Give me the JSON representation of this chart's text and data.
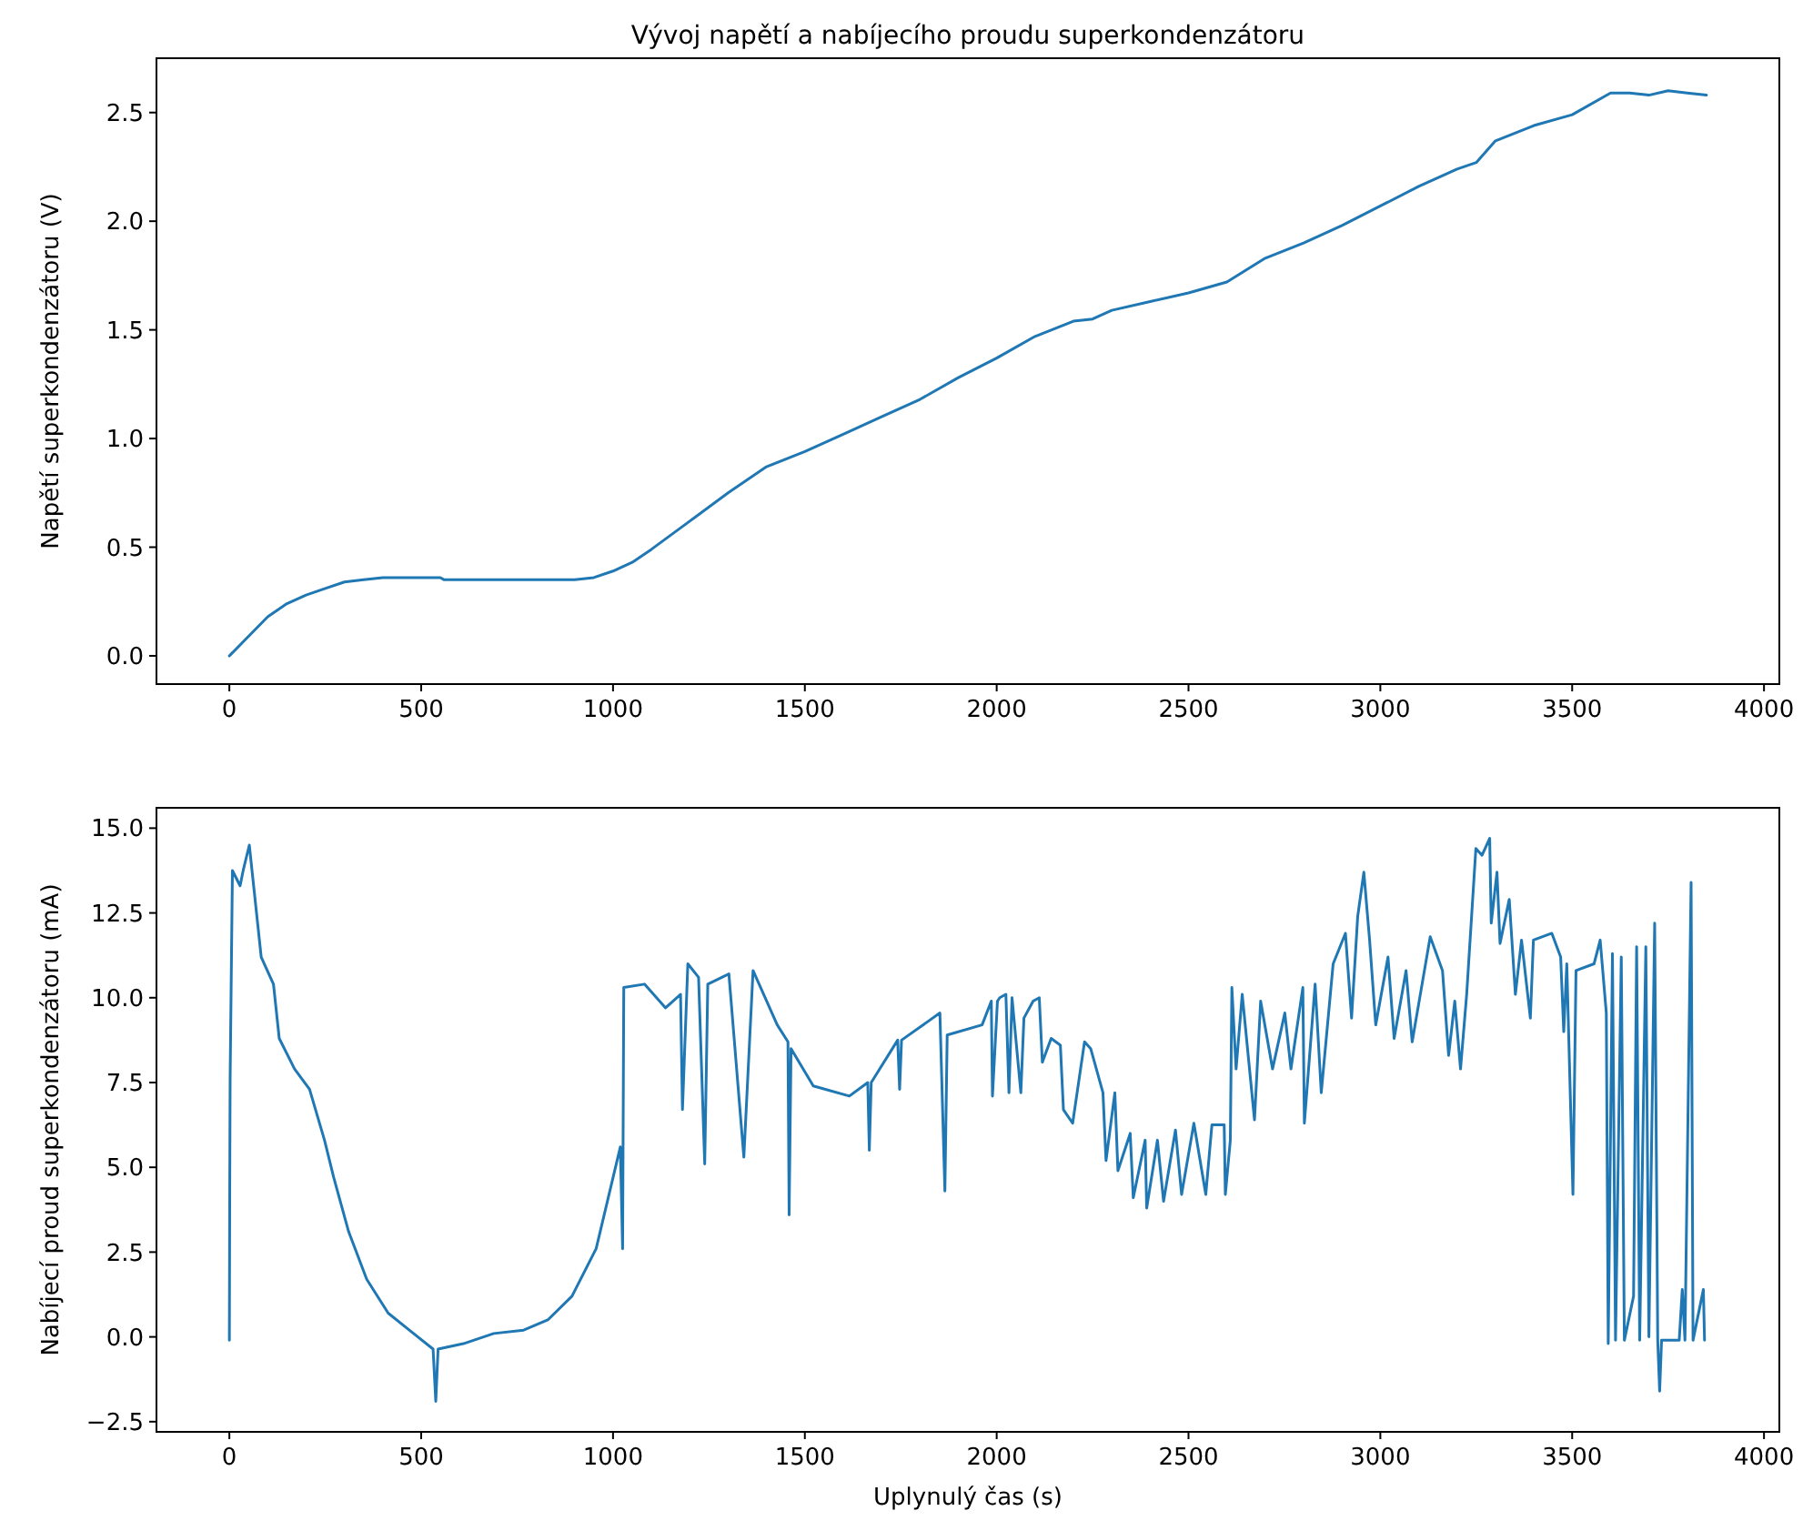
{
  "chart_data": [
    {
      "type": "line",
      "title": "Vývoj napětí a nabíjecího proudu superkondenzátoru",
      "ylabel": "Napětí superkondenzátoru (V)",
      "xlim": [
        -190,
        4040
      ],
      "xticks": [
        0,
        500,
        1000,
        1500,
        2000,
        2500,
        3000,
        3500,
        4000
      ],
      "ylim": [
        -0.13,
        2.75
      ],
      "yticks": [
        {
          "value": 0,
          "label": "0.0"
        },
        {
          "value": 0.5,
          "label": "0.5"
        },
        {
          "value": 1,
          "label": "1.0"
        },
        {
          "value": 1.5,
          "label": "1.5"
        },
        {
          "value": 2,
          "label": "2.0"
        },
        {
          "value": 2.5,
          "label": "2.5"
        }
      ],
      "series": [
        {
          "color": "#1f77b4",
          "x": [
            0,
            50,
            100,
            150,
            200,
            250,
            300,
            350,
            400,
            500,
            550,
            560,
            700,
            900,
            950,
            1000,
            1050,
            1100,
            1200,
            1300,
            1400,
            1500,
            1600,
            1700,
            1800,
            1900,
            2000,
            2100,
            2200,
            2250,
            2300,
            2400,
            2500,
            2600,
            2700,
            2800,
            2900,
            3000,
            3100,
            3200,
            3250,
            3300,
            3400,
            3500,
            3600,
            3650,
            3700,
            3750,
            3800,
            3850
          ],
          "values": [
            0,
            0.09,
            0.18,
            0.24,
            0.28,
            0.31,
            0.34,
            0.35,
            0.36,
            0.36,
            0.36,
            0.35,
            0.35,
            0.35,
            0.36,
            0.39,
            0.43,
            0.49,
            0.62,
            0.75,
            0.87,
            0.94,
            1.02,
            1.1,
            1.18,
            1.28,
            1.37,
            1.47,
            1.54,
            1.55,
            1.59,
            1.63,
            1.67,
            1.72,
            1.83,
            1.9,
            1.98,
            2.07,
            2.16,
            2.24,
            2.27,
            2.37,
            2.44,
            2.49,
            2.59,
            2.59,
            2.58,
            2.6,
            2.59,
            2.58
          ]
        }
      ]
    },
    {
      "type": "line",
      "xlabel": "Uplynulý čas (s)",
      "ylabel": "Nabíjecí proud superkondenzátoru (mA)",
      "xlim": [
        -190,
        4040
      ],
      "xticks": [
        0,
        500,
        1000,
        1500,
        2000,
        2500,
        3000,
        3500,
        4000
      ],
      "ylim": [
        -2.8,
        15.6
      ],
      "yticks": [
        {
          "value": -2.5,
          "label": "−2.5"
        },
        {
          "value": 0,
          "label": "0.0"
        },
        {
          "value": 2.5,
          "label": "2.5"
        },
        {
          "value": 5,
          "label": "5.0"
        },
        {
          "value": 7.5,
          "label": "7.5"
        },
        {
          "value": 10,
          "label": "10.0"
        },
        {
          "value": 12.5,
          "label": "12.5"
        },
        {
          "value": 15,
          "label": "15.0"
        }
      ],
      "series": [
        {
          "color": "#1f77b4",
          "x": [
            0,
            1,
            2,
            8,
            28,
            36,
            52,
            83,
            115,
            130,
            170,
            209,
            248,
            272,
            311,
            358,
            414,
            469,
            531,
            538,
            544,
            610,
            689,
            767,
            830,
            893,
            956,
            1019,
            1025,
            1028,
            1082,
            1137,
            1176,
            1181,
            1195,
            1223,
            1239,
            1247,
            1302,
            1341,
            1365,
            1428,
            1456,
            1459,
            1464,
            1522,
            1616,
            1664,
            1668,
            1673,
            1742,
            1747,
            1752,
            1852,
            1865,
            1871,
            1962,
            1986,
            1989,
            2002,
            2008,
            2024,
            2032,
            2040,
            2063,
            2071,
            2095,
            2111,
            2119,
            2142,
            2166,
            2174,
            2198,
            2229,
            2245,
            2277,
            2285,
            2308,
            2316,
            2348,
            2356,
            2387,
            2391,
            2419,
            2435,
            2466,
            2482,
            2514,
            2545,
            2561,
            2593,
            2596,
            2609,
            2613,
            2624,
            2640,
            2672,
            2688,
            2719,
            2751,
            2767,
            2798,
            2802,
            2830,
            2846,
            2877,
            2909,
            2925,
            2941,
            2957,
            2972,
            2988,
            3020,
            3036,
            3067,
            3083,
            3130,
            3162,
            3178,
            3194,
            3209,
            3225,
            3249,
            3265,
            3285,
            3289,
            3304,
            3312,
            3336,
            3352,
            3368,
            3391,
            3399,
            3447,
            3470,
            3478,
            3486,
            3502,
            3510,
            3557,
            3573,
            3589,
            3594,
            3605,
            3613,
            3628,
            3636,
            3660,
            3668,
            3676,
            3692,
            3700,
            3715,
            3723,
            3728,
            3733,
            3779,
            3787,
            3794,
            3810,
            3815,
            3842,
            3845
          ],
          "values": [
            -0.1,
            4.4,
            7.6,
            13.75,
            13.3,
            13.75,
            14.5,
            11.2,
            10.4,
            8.8,
            7.9,
            7.3,
            5.8,
            4.7,
            3.1,
            1.7,
            0.7,
            0.2,
            -0.36,
            -1.9,
            -0.36,
            -0.2,
            0.1,
            0.2,
            0.5,
            1.2,
            2.6,
            5.6,
            2.6,
            10.3,
            10.4,
            9.7,
            10.1,
            6.7,
            11,
            10.6,
            5.1,
            10.4,
            10.7,
            5.3,
            10.8,
            9.2,
            8.7,
            3.6,
            8.5,
            7.4,
            7.1,
            7.5,
            5.5,
            7.5,
            8.75,
            7.3,
            8.75,
            9.55,
            4.3,
            8.9,
            9.2,
            9.9,
            7.1,
            9.9,
            10,
            10.1,
            7.2,
            10,
            7.2,
            9.4,
            9.9,
            10,
            8.1,
            8.8,
            8.6,
            6.7,
            6.3,
            8.7,
            8.5,
            7.2,
            5.2,
            7.2,
            4.9,
            6,
            4.1,
            5.8,
            3.8,
            5.8,
            4,
            6.1,
            4.2,
            6.3,
            4.2,
            6.25,
            6.25,
            4.2,
            5.8,
            10.3,
            7.9,
            10.1,
            6.4,
            9.9,
            7.9,
            9.55,
            7.9,
            10.3,
            6.3,
            10.4,
            7.2,
            11,
            11.9,
            9.4,
            12.4,
            13.7,
            11.7,
            9.2,
            11.2,
            8.8,
            10.8,
            8.7,
            11.8,
            10.8,
            8.3,
            9.9,
            7.9,
            10.1,
            14.4,
            14.2,
            14.7,
            12.2,
            13.7,
            11.6,
            12.9,
            10.1,
            11.7,
            9.4,
            11.7,
            11.9,
            11.2,
            9,
            11,
            4.2,
            10.8,
            11,
            11.7,
            9.55,
            -0.2,
            11.3,
            -0.1,
            11.2,
            -0.1,
            1.2,
            11.5,
            -0.1,
            11.5,
            0,
            12.2,
            -0.1,
            -1.6,
            -0.1,
            -0.1,
            1.4,
            -0.1,
            13.4,
            -0.1,
            1.4,
            -0.1
          ]
        }
      ]
    }
  ]
}
